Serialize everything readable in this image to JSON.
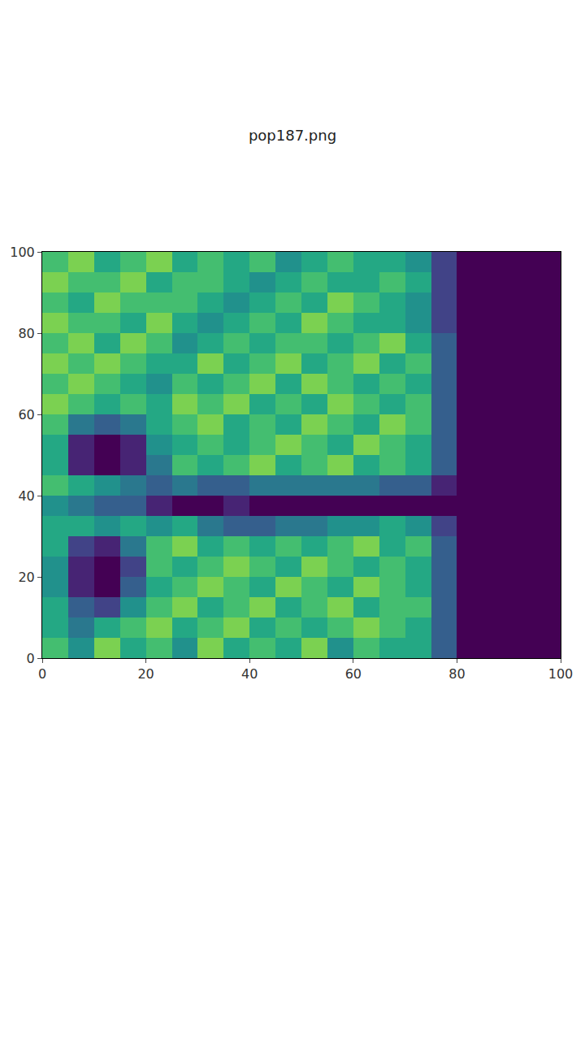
{
  "chart_data": {
    "type": "heatmap",
    "title": "pop187.png",
    "x": [
      2.5,
      7.5,
      12.5,
      17.5,
      22.5,
      27.5,
      32.5,
      37.5,
      42.5,
      47.5,
      52.5,
      57.5,
      62.5,
      67.5,
      72.5,
      77.5,
      82.5,
      87.5,
      92.5,
      97.5
    ],
    "y": [
      2.5,
      7.5,
      12.5,
      17.5,
      22.5,
      27.5,
      32.5,
      37.5,
      42.5,
      47.5,
      52.5,
      57.5,
      62.5,
      67.5,
      72.5,
      77.5,
      82.5,
      87.5,
      92.5,
      97.5
    ],
    "z": [
      [
        0.7,
        0.5,
        0.8,
        0.6,
        0.7,
        0.5,
        0.8,
        0.6,
        0.7,
        0.6,
        0.8,
        0.5,
        0.7,
        0.6,
        0.6,
        0.3,
        0,
        0,
        0,
        0
      ],
      [
        0.6,
        0.4,
        0.6,
        0.7,
        0.8,
        0.6,
        0.7,
        0.8,
        0.6,
        0.7,
        0.6,
        0.7,
        0.8,
        0.7,
        0.6,
        0.3,
        0,
        0,
        0,
        0
      ],
      [
        0.6,
        0.3,
        0.2,
        0.5,
        0.7,
        0.8,
        0.6,
        0.7,
        0.8,
        0.6,
        0.7,
        0.8,
        0.6,
        0.7,
        0.7,
        0.3,
        0,
        0,
        0,
        0
      ],
      [
        0.5,
        0.1,
        0.0,
        0.3,
        0.6,
        0.7,
        0.8,
        0.7,
        0.6,
        0.8,
        0.7,
        0.6,
        0.8,
        0.7,
        0.6,
        0.3,
        0,
        0,
        0,
        0
      ],
      [
        0.5,
        0.1,
        0.0,
        0.2,
        0.7,
        0.6,
        0.7,
        0.8,
        0.7,
        0.6,
        0.8,
        0.7,
        0.6,
        0.7,
        0.6,
        0.3,
        0,
        0,
        0,
        0
      ],
      [
        0.6,
        0.2,
        0.1,
        0.4,
        0.7,
        0.8,
        0.6,
        0.7,
        0.6,
        0.7,
        0.6,
        0.7,
        0.8,
        0.6,
        0.7,
        0.3,
        0,
        0,
        0,
        0
      ],
      [
        0.6,
        0.6,
        0.5,
        0.6,
        0.5,
        0.6,
        0.4,
        0.3,
        0.3,
        0.4,
        0.4,
        0.5,
        0.5,
        0.6,
        0.5,
        0.2,
        0,
        0,
        0,
        0
      ],
      [
        0.5,
        0.4,
        0.3,
        0.3,
        0.1,
        0.0,
        0.0,
        0.1,
        0.0,
        0.0,
        0.0,
        0.0,
        0.0,
        0.0,
        0.0,
        0.0,
        0,
        0,
        0,
        0
      ],
      [
        0.7,
        0.6,
        0.5,
        0.4,
        0.3,
        0.4,
        0.3,
        0.3,
        0.4,
        0.4,
        0.4,
        0.4,
        0.4,
        0.3,
        0.3,
        0.1,
        0,
        0,
        0,
        0
      ],
      [
        0.6,
        0.1,
        0.0,
        0.1,
        0.4,
        0.7,
        0.6,
        0.7,
        0.8,
        0.6,
        0.7,
        0.8,
        0.6,
        0.7,
        0.6,
        0.3,
        0,
        0,
        0,
        0
      ],
      [
        0.6,
        0.1,
        0.0,
        0.1,
        0.5,
        0.6,
        0.7,
        0.6,
        0.7,
        0.8,
        0.7,
        0.6,
        0.8,
        0.7,
        0.6,
        0.3,
        0,
        0,
        0,
        0
      ],
      [
        0.7,
        0.4,
        0.3,
        0.4,
        0.6,
        0.7,
        0.8,
        0.6,
        0.7,
        0.6,
        0.8,
        0.7,
        0.6,
        0.8,
        0.7,
        0.3,
        0,
        0,
        0,
        0
      ],
      [
        0.8,
        0.7,
        0.6,
        0.7,
        0.6,
        0.8,
        0.7,
        0.8,
        0.6,
        0.7,
        0.6,
        0.8,
        0.7,
        0.6,
        0.7,
        0.3,
        0,
        0,
        0,
        0
      ],
      [
        0.7,
        0.8,
        0.7,
        0.6,
        0.5,
        0.7,
        0.6,
        0.7,
        0.8,
        0.6,
        0.8,
        0.7,
        0.6,
        0.7,
        0.6,
        0.3,
        0,
        0,
        0,
        0
      ],
      [
        0.8,
        0.7,
        0.8,
        0.7,
        0.6,
        0.6,
        0.8,
        0.6,
        0.7,
        0.8,
        0.6,
        0.7,
        0.8,
        0.6,
        0.7,
        0.3,
        0,
        0,
        0,
        0
      ],
      [
        0.7,
        0.8,
        0.6,
        0.8,
        0.7,
        0.5,
        0.6,
        0.7,
        0.6,
        0.7,
        0.7,
        0.6,
        0.7,
        0.8,
        0.6,
        0.3,
        0,
        0,
        0,
        0
      ],
      [
        0.8,
        0.7,
        0.7,
        0.6,
        0.8,
        0.6,
        0.5,
        0.6,
        0.7,
        0.6,
        0.8,
        0.7,
        0.6,
        0.6,
        0.5,
        0.2,
        0,
        0,
        0,
        0
      ],
      [
        0.7,
        0.6,
        0.8,
        0.7,
        0.7,
        0.7,
        0.6,
        0.5,
        0.6,
        0.7,
        0.6,
        0.8,
        0.7,
        0.6,
        0.5,
        0.2,
        0,
        0,
        0,
        0
      ],
      [
        0.8,
        0.7,
        0.7,
        0.8,
        0.6,
        0.7,
        0.7,
        0.6,
        0.5,
        0.6,
        0.7,
        0.6,
        0.6,
        0.7,
        0.6,
        0.2,
        0,
        0,
        0,
        0
      ],
      [
        0.7,
        0.8,
        0.6,
        0.7,
        0.8,
        0.6,
        0.7,
        0.6,
        0.7,
        0.5,
        0.6,
        0.7,
        0.6,
        0.6,
        0.5,
        0.2,
        0,
        0,
        0,
        0
      ]
    ],
    "zlim": [
      0,
      1
    ],
    "xlim": [
      0,
      100
    ],
    "ylim": [
      0,
      100
    ],
    "xticks": [
      0,
      20,
      40,
      60,
      80,
      100
    ],
    "yticks": [
      0,
      20,
      40,
      60,
      80,
      100
    ],
    "color": "Viridis",
    "grid": false
  }
}
